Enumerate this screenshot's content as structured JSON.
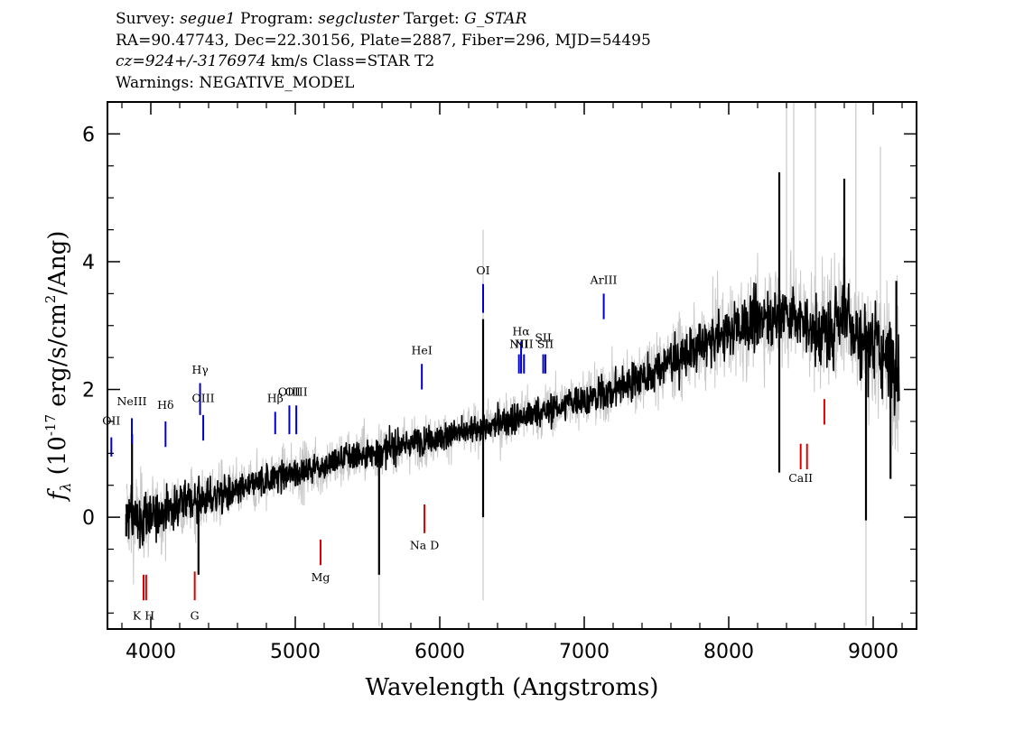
{
  "header": {
    "survey_label": "Survey:",
    "survey": "segue1",
    "program_label": "Program:",
    "program": "segcluster",
    "target_label": "Target:",
    "target": "G_STAR",
    "line2": "RA=90.47743, Dec=22.30156, Plate=2887, Fiber=296, MJD=54495",
    "cz": "cz=924+/-3176974",
    "cz_units": "km/s Class=STAR T2",
    "warnings": "Warnings: NEGATIVE_MODEL"
  },
  "chart_data": {
    "type": "line",
    "xlabel": "Wavelength (Angstroms)",
    "ylabel_prefix": "f",
    "ylabel_sub": "λ",
    "ylabel_body": " (10",
    "ylabel_exp": "-17",
    "ylabel_mid": " erg/s/cm",
    "ylabel_exp2": "2",
    "ylabel_end": "/Ang)",
    "xlim": [
      3700,
      9300
    ],
    "ylim": [
      -1.75,
      6.5
    ],
    "x_ticks": [
      4000,
      5000,
      6000,
      7000,
      8000,
      9000
    ],
    "x_tick_labels": [
      "4000",
      "5000",
      "6000",
      "7000",
      "8000",
      "9000"
    ],
    "y_ticks": [
      0,
      2,
      4,
      6
    ],
    "y_tick_labels": [
      "0",
      "2",
      "4",
      "6"
    ],
    "series": [
      {
        "role": "flux",
        "color": "#000000",
        "x": [
          3830,
          3900,
          4000,
          4100,
          4200,
          4300,
          4400,
          4500,
          4600,
          4700,
          4800,
          4900,
          5000,
          5100,
          5200,
          5300,
          5400,
          5500,
          5600,
          5700,
          5800,
          5900,
          6000,
          6100,
          6200,
          6300,
          6400,
          6500,
          6600,
          6700,
          6800,
          6900,
          7000,
          7100,
          7200,
          7300,
          7400,
          7500,
          7600,
          7700,
          7800,
          7900,
          8000,
          8100,
          8200,
          8300,
          8400,
          8500,
          8600,
          8700,
          8800,
          8900,
          9000,
          9100,
          9180
        ],
        "y": [
          0.05,
          -0.05,
          0.0,
          0.1,
          0.2,
          0.25,
          0.3,
          0.35,
          0.4,
          0.5,
          0.6,
          0.65,
          0.7,
          0.75,
          0.8,
          0.9,
          0.95,
          1.0,
          1.05,
          1.1,
          1.15,
          1.2,
          1.25,
          1.3,
          1.35,
          1.4,
          1.45,
          1.55,
          1.6,
          1.65,
          1.7,
          1.8,
          1.85,
          1.9,
          2.0,
          2.1,
          2.2,
          2.3,
          2.45,
          2.55,
          2.65,
          2.8,
          2.9,
          3.0,
          3.1,
          3.15,
          3.2,
          3.1,
          2.9,
          2.9,
          3.3,
          2.8,
          2.7,
          2.5,
          2.3
        ],
        "noise": [
          0.45,
          0.45,
          0.35,
          0.35,
          0.3,
          0.3,
          0.3,
          0.3,
          0.25,
          0.25,
          0.25,
          0.25,
          0.25,
          0.25,
          0.25,
          0.25,
          0.25,
          0.25,
          0.25,
          0.25,
          0.25,
          0.22,
          0.22,
          0.22,
          0.22,
          0.22,
          0.25,
          0.25,
          0.25,
          0.25,
          0.25,
          0.25,
          0.25,
          0.3,
          0.3,
          0.3,
          0.3,
          0.35,
          0.35,
          0.35,
          0.35,
          0.4,
          0.4,
          0.45,
          0.45,
          0.5,
          0.5,
          0.5,
          0.55,
          0.55,
          0.6,
          0.6,
          0.65,
          0.65,
          0.7
        ],
        "spikes": [
          [
            3830,
            -0.3
          ],
          [
            3870,
            1.3
          ],
          [
            4330,
            -0.9
          ],
          [
            5580,
            -0.9
          ],
          [
            6300,
            3.1
          ],
          [
            6300,
            0.0
          ],
          [
            8350,
            5.4
          ],
          [
            8350,
            0.7
          ],
          [
            8800,
            5.3
          ],
          [
            8950,
            -0.05
          ],
          [
            9120,
            0.6
          ],
          [
            9160,
            3.7
          ]
        ]
      },
      {
        "role": "error",
        "color": "#c8c8c8",
        "spikes": [
          [
            6300,
            -1.3
          ],
          [
            6300,
            4.5
          ],
          [
            8400,
            6.5
          ],
          [
            8450,
            6.5
          ],
          [
            8600,
            6.5
          ],
          [
            8880,
            6.5
          ],
          [
            8950,
            -1.7
          ],
          [
            9050,
            5.8
          ],
          [
            5580,
            -1.7
          ]
        ]
      }
    ],
    "emission_lines": [
      {
        "label": "OII",
        "x": 3727,
        "y_low": 0.95,
        "y_high": 1.25,
        "label_y": 1.45
      },
      {
        "label": "NeIII",
        "x": 3869,
        "y_low": 1.15,
        "y_high": 1.55,
        "label_y": 1.75
      },
      {
        "label": "Hδ",
        "x": 4102,
        "y_low": 1.1,
        "y_high": 1.5,
        "label_y": 1.7
      },
      {
        "label": "Hγ",
        "x": 4341,
        "y_low": 1.6,
        "y_high": 2.1,
        "label_y": 2.25
      },
      {
        "label": "OIII",
        "x": 4363,
        "y_low": 1.2,
        "y_high": 1.6,
        "label_y": 1.8
      },
      {
        "label": "Hβ",
        "x": 4861,
        "y_low": 1.3,
        "y_high": 1.65,
        "label_y": 1.8
      },
      {
        "label": "OIII",
        "x": 4959,
        "y_low": 1.3,
        "y_high": 1.75,
        "label_y": 1.9
      },
      {
        "label": "OIII",
        "x": 5007,
        "y_low": 1.3,
        "y_high": 1.75,
        "label_y": 1.9
      },
      {
        "label": "HeI",
        "x": 5876,
        "y_low": 2.0,
        "y_high": 2.4,
        "label_y": 2.55
      },
      {
        "label": "OI",
        "x": 6300,
        "y_low": 3.2,
        "y_high": 3.65,
        "label_y": 3.8
      },
      {
        "label": "NII",
        "x": 6548,
        "y_low": 2.25,
        "y_high": 2.55,
        "label_y": 2.65
      },
      {
        "label": "Hα",
        "x": 6563,
        "y_low": 2.25,
        "y_high": 2.75,
        "label_y": 2.85
      },
      {
        "label": "NII",
        "x": 6583,
        "y_low": 2.25,
        "y_high": 2.55,
        "label_y": 2.65
      },
      {
        "label": "SII",
        "x": 6716,
        "y_low": 2.25,
        "y_high": 2.55,
        "label_y": 2.75
      },
      {
        "label": "SII",
        "x": 6731,
        "y_low": 2.25,
        "y_high": 2.55,
        "label_y": 2.65
      },
      {
        "label": "ArIII",
        "x": 7135,
        "y_low": 3.1,
        "y_high": 3.5,
        "label_y": 3.65
      }
    ],
    "absorption_lines": [
      {
        "label": "K H",
        "x": 3950,
        "y_low": -1.3,
        "y_high": -0.9,
        "label_y": -1.6
      },
      {
        "label": "",
        "x": 3968,
        "y_low": -1.3,
        "y_high": -0.9,
        "label_y": -1.6
      },
      {
        "label": "G",
        "x": 4304,
        "y_low": -1.3,
        "y_high": -0.85,
        "label_y": -1.6
      },
      {
        "label": "Mg",
        "x": 5175,
        "y_low": -0.75,
        "y_high": -0.35,
        "label_y": -1.0
      },
      {
        "label": "Na D",
        "x": 5894,
        "y_low": -0.25,
        "y_high": 0.2,
        "label_y": -0.5
      },
      {
        "label": "CaII",
        "x": 8498,
        "y_low": 0.75,
        "y_high": 1.15,
        "label_y": 0.55
      },
      {
        "label": "",
        "x": 8542,
        "y_low": 0.75,
        "y_high": 1.15,
        "label_y": 0.55
      },
      {
        "label": "",
        "x": 8662,
        "y_low": 1.45,
        "y_high": 1.85,
        "label_y": 0.55
      }
    ],
    "colors": {
      "flux": "#000000",
      "error": "#c8c8c8",
      "emission": "#0000cc",
      "absorption": "#dd0000"
    }
  }
}
